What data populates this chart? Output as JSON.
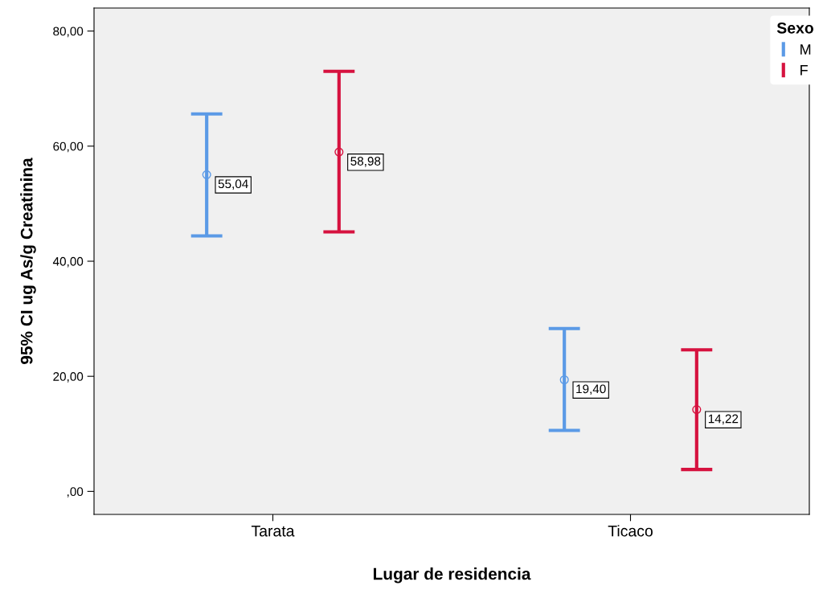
{
  "chart_data": {
    "type": "scatter",
    "xlabel": "Lugar de residencia",
    "ylabel": "95% CI ug As/g Creatinina",
    "legend_title": "Sexo",
    "legend": "right",
    "categories": [
      "Tarata",
      "Ticaco"
    ],
    "series": [
      {
        "name": "M",
        "color": "#5b9ae6",
        "values": [
          55.04,
          19.4
        ],
        "errors": [
          [
            44.4,
            65.6
          ],
          [
            10.6,
            28.3
          ]
        ],
        "value_labels": [
          "55,04",
          "19,40"
        ]
      },
      {
        "name": "F",
        "color": "#d6123f",
        "values": [
          58.98,
          14.22
        ],
        "errors": [
          [
            45.1,
            73.0
          ],
          [
            3.8,
            24.6
          ]
        ],
        "value_labels": [
          "58,98",
          "14,22"
        ]
      }
    ],
    "ylim": [
      -4,
      84
    ],
    "yticks": [
      {
        "value": 0,
        "label": ",00"
      },
      {
        "value": 20,
        "label": "20,00"
      },
      {
        "value": 40,
        "label": "40,00"
      },
      {
        "value": 60,
        "label": "60,00"
      },
      {
        "value": 80,
        "label": "80,00"
      }
    ],
    "marker": "circle",
    "grid": false
  }
}
